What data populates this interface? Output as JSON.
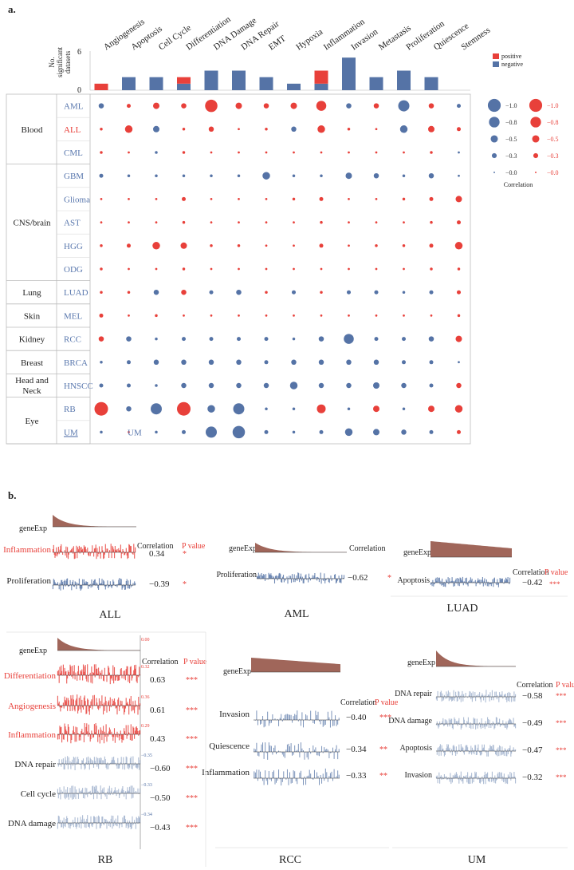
{
  "colors": {
    "positive": "#e8403a",
    "negative": "#5573a6",
    "sample": "#5a78ae",
    "header_red": "#e8403a",
    "hist": "#a0665a"
  },
  "panel_a": {
    "label": "a.",
    "ylabel": [
      "No.",
      "significant",
      "datasets"
    ],
    "yticks": [
      "6",
      "0"
    ],
    "chart_data": {
      "type": "bar",
      "categories": [
        "Angiogenesis",
        "Apoptosis",
        "Cell Cycle",
        "Differentiation",
        "DNA Damage",
        "DNA Repair",
        "EMT",
        "Hypoxia",
        "Inflammation",
        "Invasion",
        "Metastasis",
        "Proliferation",
        "Quiescence",
        "Stemness"
      ],
      "series": [
        {
          "name": "positive",
          "values": [
            1,
            0,
            0,
            1,
            0,
            0,
            0,
            0,
            2,
            0,
            0,
            0,
            0,
            0
          ]
        },
        {
          "name": "negative",
          "values": [
            0,
            2,
            2,
            1,
            3,
            3,
            2,
            1,
            1,
            5,
            2,
            3,
            2,
            0
          ]
        }
      ],
      "ylim": [
        0,
        6
      ]
    },
    "legend": {
      "positive": "positive",
      "negative": "negative"
    },
    "groups": [
      {
        "name": "Blood",
        "rows": [
          0,
          1,
          2
        ]
      },
      {
        "name": "CNS/brain",
        "rows": [
          3,
          4,
          5,
          6,
          7
        ]
      },
      {
        "name": "Lung",
        "rows": [
          8
        ]
      },
      {
        "name": "Skin",
        "rows": [
          9
        ]
      },
      {
        "name": "Kidney",
        "rows": [
          10
        ]
      },
      {
        "name": "Breast",
        "rows": [
          11
        ]
      },
      {
        "name": "Head and Neck",
        "rows": [
          12
        ]
      },
      {
        "name": "Eye",
        "rows": [
          13,
          14
        ]
      }
    ],
    "rows": [
      {
        "name": "AML",
        "red": false
      },
      {
        "name": "ALL",
        "red": true
      },
      {
        "name": "CML",
        "red": false
      },
      {
        "name": "GBM",
        "red": false
      },
      {
        "name": "Glioma",
        "red": false
      },
      {
        "name": "AST",
        "red": false
      },
      {
        "name": "HGG",
        "red": false
      },
      {
        "name": "ODG",
        "red": false
      },
      {
        "name": "LUAD",
        "red": false
      },
      {
        "name": "MEL",
        "red": false
      },
      {
        "name": "RCC",
        "red": false
      },
      {
        "name": "BRCA",
        "red": false
      },
      {
        "name": "HNSCC",
        "red": false
      },
      {
        "name": "RB",
        "red": false
      },
      {
        "name": "UM",
        "red": false
      }
    ],
    "bubble_matrix": [
      [
        -0.3,
        0.2,
        0.4,
        0.3,
        0.9,
        0.4,
        0.3,
        0.4,
        0.7,
        -0.3,
        0.3,
        -0.8,
        0.3,
        -0.2
      ],
      [
        0.1,
        0.5,
        -0.4,
        0.1,
        0.3,
        0.05,
        0.1,
        -0.3,
        0.5,
        0.1,
        0.05,
        -0.5,
        0.4,
        0.2
      ],
      [
        0.1,
        0.05,
        -0.1,
        0.1,
        0.05,
        0.05,
        0.05,
        0.05,
        0.05,
        0.05,
        0.05,
        0.05,
        0.1,
        -0.05
      ],
      [
        -0.2,
        -0.1,
        -0.1,
        -0.1,
        -0.1,
        -0.1,
        -0.5,
        -0.1,
        -0.1,
        -0.4,
        -0.3,
        -0.1,
        -0.3,
        -0.05
      ],
      [
        0.05,
        0.05,
        0.05,
        0.2,
        0.05,
        0.05,
        0.05,
        0.1,
        0.2,
        0.05,
        0.05,
        0.1,
        0.2,
        0.4
      ],
      [
        0.05,
        0.05,
        0.05,
        0.1,
        0.05,
        0.05,
        0.05,
        0.05,
        0.1,
        0.05,
        0.05,
        0.05,
        0.1,
        0.2
      ],
      [
        0.1,
        0.2,
        0.5,
        0.4,
        0.1,
        0.1,
        0.05,
        0.05,
        0.2,
        0.05,
        0.1,
        0.1,
        0.2,
        0.5
      ],
      [
        0.1,
        0.05,
        0.05,
        0.1,
        0.05,
        0.05,
        0.05,
        0.05,
        0.05,
        0.05,
        0.05,
        0.05,
        0.1,
        0.1
      ],
      [
        0.1,
        0.1,
        -0.3,
        0.3,
        -0.2,
        -0.3,
        0.1,
        -0.2,
        0.1,
        -0.2,
        -0.2,
        -0.1,
        -0.2,
        0.2
      ],
      [
        0.2,
        0.05,
        0.1,
        0.05,
        0.05,
        0.05,
        0.05,
        0.05,
        0.05,
        0.05,
        0.05,
        0.05,
        0.05,
        0.1
      ],
      [
        0.3,
        -0.3,
        -0.1,
        -0.2,
        -0.2,
        -0.2,
        -0.2,
        -0.1,
        -0.3,
        -0.7,
        -0.2,
        -0.2,
        -0.3,
        0.4
      ],
      [
        -0.1,
        -0.2,
        -0.3,
        -0.3,
        -0.3,
        -0.3,
        -0.2,
        -0.3,
        -0.3,
        -0.3,
        -0.3,
        -0.2,
        -0.2,
        -0.05
      ],
      [
        -0.2,
        -0.2,
        -0.1,
        -0.3,
        -0.3,
        -0.3,
        -0.3,
        -0.5,
        -0.3,
        -0.3,
        -0.4,
        -0.3,
        -0.2,
        0.3
      ],
      [
        1.0,
        -0.3,
        -0.8,
        1.0,
        -0.5,
        -0.8,
        -0.1,
        -0.1,
        0.6,
        -0.1,
        0.4,
        -0.1,
        0.4,
        0.5
      ],
      [
        -0.1,
        0.05,
        -0.1,
        -0.2,
        -0.8,
        -0.9,
        -0.2,
        -0.1,
        -0.2,
        -0.5,
        -0.4,
        -0.3,
        -0.2,
        0.2
      ]
    ],
    "size_legend": {
      "negative": [
        "−1.0",
        "−0.8",
        "−0.5",
        "−0.3",
        "−0.0"
      ],
      "positive": [
        "−1.0",
        "−0.8",
        "−0.5",
        "−0.3",
        "−0.0"
      ],
      "title": "Correlation"
    }
  },
  "panel_b": {
    "label": "b.",
    "col_corr": "Correlation",
    "col_p": "P value",
    "panels": [
      {
        "name": "ALL",
        "rows": [
          {
            "label": "Inflammation",
            "corr": "0.34",
            "p": "*",
            "sign": "pos"
          },
          {
            "label": "Proliferation",
            "corr": "−0.39",
            "p": "*",
            "sign": "neg"
          }
        ]
      },
      {
        "name": "AML",
        "rows": [
          {
            "label": "Proliferation",
            "corr": "−0.62",
            "p": "*",
            "sign": "neg"
          }
        ]
      },
      {
        "name": "LUAD",
        "rows": [
          {
            "label": "Apoptosis",
            "corr": "−0.42",
            "p": "***",
            "sign": "neg"
          }
        ]
      },
      {
        "name": "RB",
        "rows": [
          {
            "label": "Differentiation",
            "corr": "0.63",
            "p": "***",
            "sign": "pos"
          },
          {
            "label": "Angiogenesis",
            "corr": "0.61",
            "p": "***",
            "sign": "pos"
          },
          {
            "label": "Inflammation",
            "corr": "0.43",
            "p": "***",
            "sign": "pos"
          },
          {
            "label": "DNA repair",
            "corr": "−0.60",
            "p": "***",
            "sign": "neg"
          },
          {
            "label": "Cell cycle",
            "corr": "−0.50",
            "p": "***",
            "sign": "neg"
          },
          {
            "label": "DNA damage",
            "corr": "−0.43",
            "p": "***",
            "sign": "neg"
          }
        ],
        "axis_values": [
          "0.00",
          "0.32",
          "0.36",
          "0.29",
          "−0.35",
          "−0.33",
          "−0.34"
        ]
      },
      {
        "name": "RCC",
        "rows": [
          {
            "label": "Invasion",
            "corr": "−0.40",
            "p": "***",
            "sign": "neg"
          },
          {
            "label": "Quiescence",
            "corr": "−0.34",
            "p": "**",
            "sign": "neg"
          },
          {
            "label": "Inflammation",
            "corr": "−0.33",
            "p": "**",
            "sign": "neg"
          }
        ]
      },
      {
        "name": "UM",
        "rows": [
          {
            "label": "DNA repair",
            "corr": "−0.58",
            "p": "***",
            "sign": "neg"
          },
          {
            "label": "DNA damage",
            "corr": "−0.49",
            "p": "***",
            "sign": "neg"
          },
          {
            "label": "Apoptosis",
            "corr": "−0.47",
            "p": "***",
            "sign": "neg"
          },
          {
            "label": "Invasion",
            "corr": "−0.32",
            "p": "***",
            "sign": "neg"
          }
        ]
      }
    ],
    "gene_label": "geneExp"
  }
}
